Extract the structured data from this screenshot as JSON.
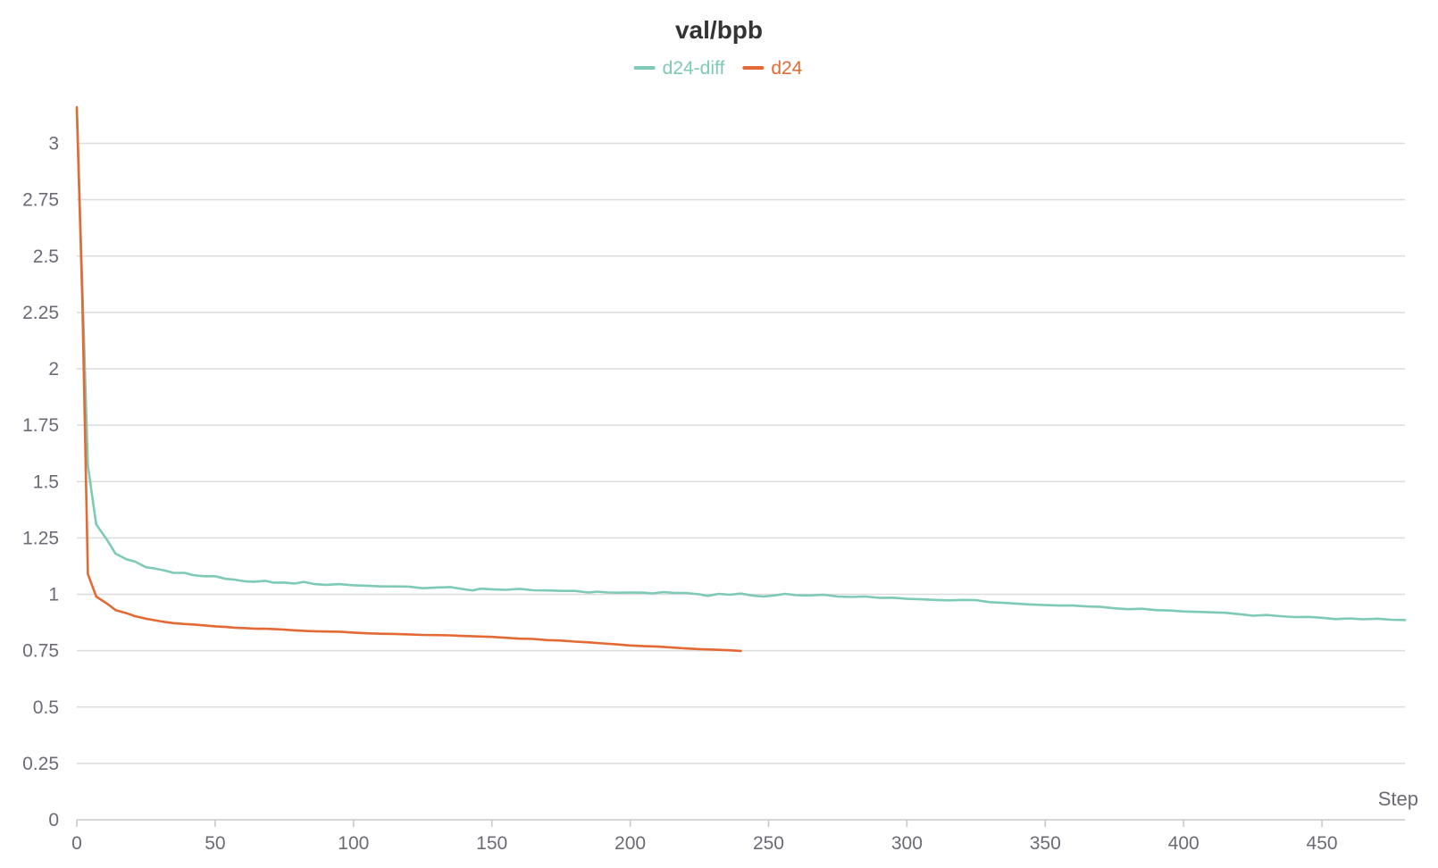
{
  "chart_data": {
    "type": "line",
    "title": "val/bpb",
    "xlabel": "Step",
    "ylabel": "",
    "xlim": [
      0,
      480
    ],
    "ylim": [
      0,
      3.2
    ],
    "x_ticks": [
      0,
      50,
      100,
      150,
      200,
      250,
      300,
      350,
      400,
      450
    ],
    "x_tick_labels": [
      "0",
      "50",
      "100",
      "150",
      "200",
      "250",
      "300",
      "350",
      "400",
      "450"
    ],
    "y_ticks": [
      0,
      0.25,
      0.5,
      0.75,
      1,
      1.25,
      1.5,
      1.75,
      2,
      2.25,
      2.5,
      2.75,
      3
    ],
    "y_tick_labels": [
      "0",
      "0.25",
      "0.5",
      "0.75",
      "1",
      "1.25",
      "1.5",
      "1.75",
      "2",
      "2.25",
      "2.5",
      "2.75",
      "3"
    ],
    "grid": true,
    "legend_position": "top-center",
    "series": [
      {
        "name": "d24-diff",
        "color": "#7ecab7",
        "points": [
          [
            0,
            3.15
          ],
          [
            4,
            1.57
          ],
          [
            7,
            1.31
          ],
          [
            11,
            1.24
          ],
          [
            14,
            1.18
          ],
          [
            18,
            1.155
          ],
          [
            21,
            1.145
          ],
          [
            25,
            1.12
          ],
          [
            28,
            1.115
          ],
          [
            32,
            1.105
          ],
          [
            35,
            1.095
          ],
          [
            39,
            1.095
          ],
          [
            42,
            1.085
          ],
          [
            46,
            1.08
          ],
          [
            50,
            1.08
          ],
          [
            54,
            1.068
          ],
          [
            57,
            1.065
          ],
          [
            61,
            1.057
          ],
          [
            64,
            1.056
          ],
          [
            68,
            1.06
          ],
          [
            71,
            1.052
          ],
          [
            75,
            1.052
          ],
          [
            79,
            1.048
          ],
          [
            82,
            1.055
          ],
          [
            86,
            1.045
          ],
          [
            90,
            1.042
          ],
          [
            95,
            1.045
          ],
          [
            100,
            1.04
          ],
          [
            105,
            1.038
          ],
          [
            110,
            1.035
          ],
          [
            115,
            1.035
          ],
          [
            120,
            1.034
          ],
          [
            125,
            1.027
          ],
          [
            130,
            1.03
          ],
          [
            135,
            1.032
          ],
          [
            140,
            1.022
          ],
          [
            143,
            1.017
          ],
          [
            146,
            1.025
          ],
          [
            150,
            1.022
          ],
          [
            155,
            1.02
          ],
          [
            160,
            1.024
          ],
          [
            165,
            1.018
          ],
          [
            170,
            1.017
          ],
          [
            175,
            1.015
          ],
          [
            180,
            1.015
          ],
          [
            185,
            1.008
          ],
          [
            188,
            1.012
          ],
          [
            192,
            1.008
          ],
          [
            196,
            1.007
          ],
          [
            200,
            1.008
          ],
          [
            205,
            1.007
          ],
          [
            208,
            1.004
          ],
          [
            212,
            1.01
          ],
          [
            216,
            1.006
          ],
          [
            220,
            1.006
          ],
          [
            225,
            1.0
          ],
          [
            228,
            0.993
          ],
          [
            232,
            1.002
          ],
          [
            236,
            0.998
          ],
          [
            240,
            1.003
          ],
          [
            244,
            0.995
          ],
          [
            248,
            0.99
          ],
          [
            252,
            0.995
          ],
          [
            256,
            1.002
          ],
          [
            260,
            0.996
          ],
          [
            265,
            0.995
          ],
          [
            270,
            0.998
          ],
          [
            275,
            0.99
          ],
          [
            280,
            0.988
          ],
          [
            285,
            0.99
          ],
          [
            290,
            0.984
          ],
          [
            295,
            0.985
          ],
          [
            300,
            0.98
          ],
          [
            305,
            0.978
          ],
          [
            310,
            0.975
          ],
          [
            315,
            0.973
          ],
          [
            320,
            0.975
          ],
          [
            325,
            0.974
          ],
          [
            330,
            0.965
          ],
          [
            335,
            0.962
          ],
          [
            340,
            0.958
          ],
          [
            345,
            0.955
          ],
          [
            350,
            0.952
          ],
          [
            355,
            0.95
          ],
          [
            360,
            0.95
          ],
          [
            365,
            0.946
          ],
          [
            370,
            0.944
          ],
          [
            375,
            0.938
          ],
          [
            380,
            0.934
          ],
          [
            385,
            0.936
          ],
          [
            390,
            0.93
          ],
          [
            395,
            0.928
          ],
          [
            400,
            0.924
          ],
          [
            405,
            0.922
          ],
          [
            410,
            0.92
          ],
          [
            415,
            0.918
          ],
          [
            420,
            0.912
          ],
          [
            425,
            0.905
          ],
          [
            430,
            0.908
          ],
          [
            435,
            0.903
          ],
          [
            440,
            0.899
          ],
          [
            445,
            0.9
          ],
          [
            450,
            0.896
          ],
          [
            455,
            0.89
          ],
          [
            460,
            0.893
          ],
          [
            465,
            0.889
          ],
          [
            470,
            0.892
          ],
          [
            475,
            0.887
          ],
          [
            480,
            0.886
          ]
        ]
      },
      {
        "name": "d24",
        "color": "#e36a34",
        "points": [
          [
            0,
            3.16
          ],
          [
            2,
            2.3
          ],
          [
            4,
            1.09
          ],
          [
            7,
            0.99
          ],
          [
            11,
            0.958
          ],
          [
            14,
            0.93
          ],
          [
            18,
            0.916
          ],
          [
            21,
            0.903
          ],
          [
            25,
            0.892
          ],
          [
            28,
            0.885
          ],
          [
            32,
            0.877
          ],
          [
            35,
            0.872
          ],
          [
            39,
            0.868
          ],
          [
            42,
            0.866
          ],
          [
            46,
            0.862
          ],
          [
            50,
            0.858
          ],
          [
            54,
            0.855
          ],
          [
            57,
            0.852
          ],
          [
            61,
            0.85
          ],
          [
            65,
            0.847
          ],
          [
            68,
            0.847
          ],
          [
            72,
            0.845
          ],
          [
            75,
            0.843
          ],
          [
            79,
            0.84
          ],
          [
            82,
            0.838
          ],
          [
            86,
            0.836
          ],
          [
            90,
            0.835
          ],
          [
            95,
            0.834
          ],
          [
            100,
            0.83
          ],
          [
            105,
            0.827
          ],
          [
            110,
            0.825
          ],
          [
            115,
            0.824
          ],
          [
            120,
            0.822
          ],
          [
            125,
            0.82
          ],
          [
            130,
            0.819
          ],
          [
            135,
            0.818
          ],
          [
            140,
            0.815
          ],
          [
            145,
            0.813
          ],
          [
            150,
            0.811
          ],
          [
            155,
            0.807
          ],
          [
            160,
            0.803
          ],
          [
            165,
            0.802
          ],
          [
            170,
            0.797
          ],
          [
            175,
            0.795
          ],
          [
            180,
            0.79
          ],
          [
            185,
            0.787
          ],
          [
            190,
            0.782
          ],
          [
            195,
            0.778
          ],
          [
            200,
            0.773
          ],
          [
            205,
            0.77
          ],
          [
            210,
            0.768
          ],
          [
            215,
            0.764
          ],
          [
            220,
            0.76
          ],
          [
            225,
            0.757
          ],
          [
            230,
            0.755
          ],
          [
            235,
            0.752
          ],
          [
            240,
            0.749
          ]
        ]
      }
    ]
  }
}
